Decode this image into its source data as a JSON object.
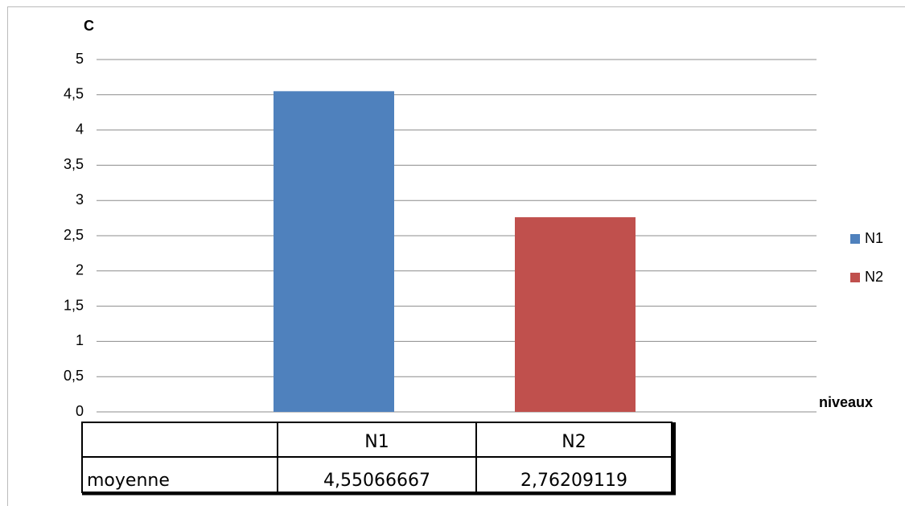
{
  "chart_data": {
    "type": "bar",
    "title": "C",
    "x_label": "niveaux",
    "categories": [
      "N1",
      "N2"
    ],
    "values": [
      4.55066667,
      2.76209119
    ],
    "value_labels": [
      "4,55066667",
      "2,76209119"
    ],
    "colors": [
      "#4f81bd",
      "#c0504d"
    ],
    "ylim": [
      0,
      5
    ],
    "yticks": [
      0,
      {
        "value": 0.5,
        "label": "0,5"
      },
      1,
      {
        "value": 1.5,
        "label": "1,5"
      },
      2,
      {
        "value": 2.5,
        "label": "2,5"
      },
      3,
      {
        "value": 3.5,
        "label": "3,5"
      },
      4,
      {
        "value": 4.5,
        "label": "4,5"
      },
      5
    ],
    "grid": true,
    "legend": "right",
    "table": {
      "row_label": "moyenne"
    }
  }
}
